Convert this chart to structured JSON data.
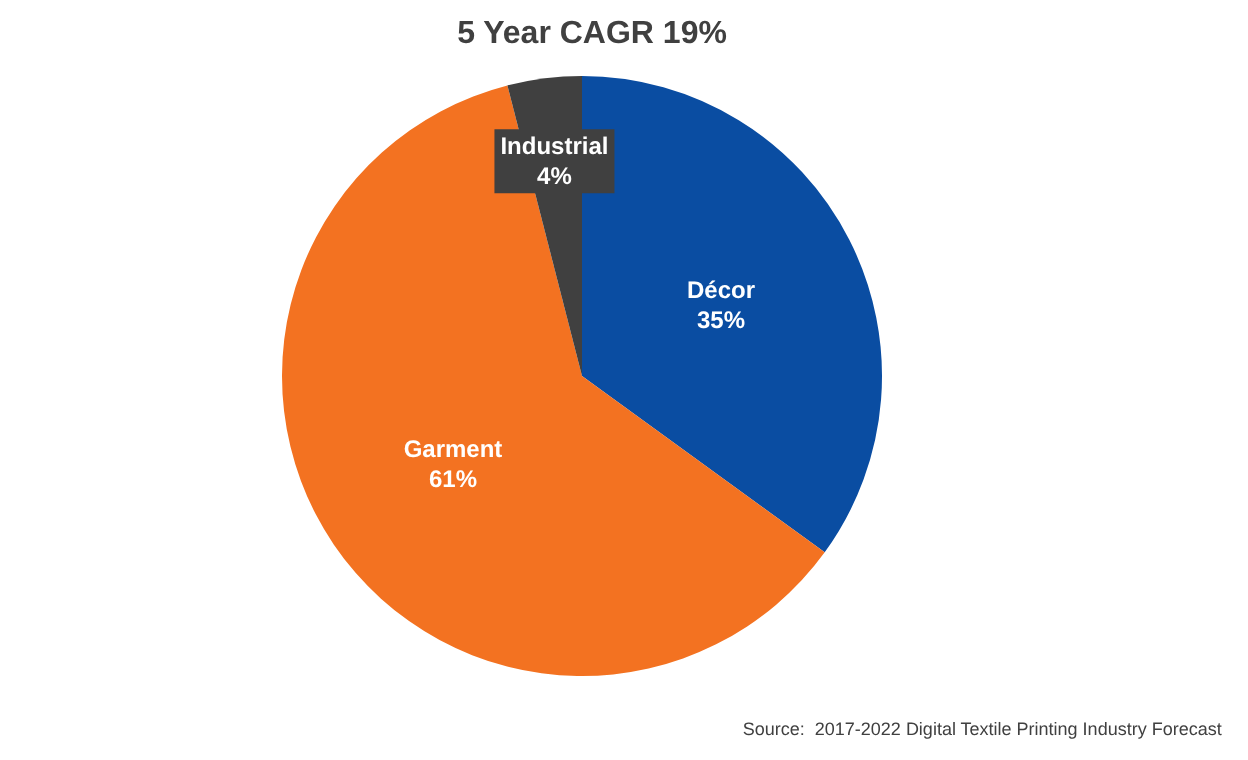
{
  "chart_data": {
    "type": "pie",
    "title": "5 Year CAGR 19%",
    "categories": [
      "Décor",
      "Garment",
      "Industrial"
    ],
    "values": [
      35,
      61,
      4
    ],
    "colors": [
      "#0a4da2",
      "#f37221",
      "#404040"
    ],
    "value_labels": [
      "35%",
      "61%",
      "4%"
    ],
    "legend": false,
    "annotations": [
      "Source:  2017-2022 Digital Textile Printing Industry Forecast"
    ]
  }
}
